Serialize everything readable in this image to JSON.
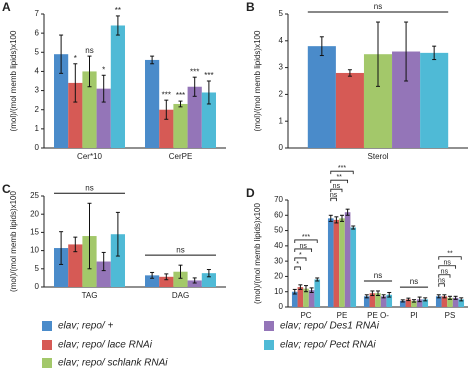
{
  "legend": [
    {
      "name": "elav; repo/ +",
      "color": "#4a8bca"
    },
    {
      "name": "elav; repo/ lace RNAi",
      "color": "#d65a55"
    },
    {
      "name": "elav; repo/ schlank RNAi",
      "color": "#a3c86a"
    },
    {
      "name": "elav; repo/ Des1 RNAi",
      "color": "#9475b8"
    },
    {
      "name": "elav; repo/ Pect RNAi",
      "color": "#4fbad6"
    }
  ],
  "chart_data": [
    {
      "type": "bar",
      "panel": "A",
      "y_label": "(mol)/(mol memb lipids)x100",
      "categories": [
        "Cer*10",
        "CerPE"
      ],
      "series": [
        {
          "values": [
            4.9,
            4.6
          ],
          "errors": [
            1.0,
            0.2
          ]
        },
        {
          "values": [
            3.4,
            2.0
          ],
          "errors": [
            1.0,
            0.5
          ]
        },
        {
          "values": [
            4.0,
            2.3
          ],
          "errors": [
            0.8,
            0.15
          ]
        },
        {
          "values": [
            3.1,
            3.2
          ],
          "errors": [
            0.7,
            0.5
          ]
        },
        {
          "values": [
            6.4,
            2.9
          ],
          "errors": [
            0.5,
            0.6
          ]
        }
      ],
      "ylim": [
        0,
        7
      ],
      "yticks": [
        0,
        1,
        2,
        3,
        4,
        5,
        6,
        7
      ],
      "annotations": [
        {
          "text": "*",
          "category": 0,
          "series": 1
        },
        {
          "text": "ns",
          "category": 0,
          "series": 2
        },
        {
          "text": "*",
          "category": 0,
          "series": 3
        },
        {
          "text": "**",
          "category": 0,
          "series": 4
        },
        {
          "text": "***",
          "category": 1,
          "series": 1
        },
        {
          "text": "***",
          "category": 1,
          "series": 2
        },
        {
          "text": "***",
          "category": 1,
          "series": 3
        },
        {
          "text": "***",
          "category": 1,
          "series": 4
        }
      ]
    },
    {
      "type": "bar",
      "panel": "B",
      "y_label": "(mol)/(mol memb lipids)x100",
      "categories": [
        "Sterol"
      ],
      "series": [
        {
          "values": [
            3.8
          ],
          "errors": [
            0.35
          ]
        },
        {
          "values": [
            2.8
          ],
          "errors": [
            0.12
          ]
        },
        {
          "values": [
            3.5
          ],
          "errors": [
            1.2
          ]
        },
        {
          "values": [
            3.6
          ],
          "errors": [
            1.1
          ]
        },
        {
          "values": [
            3.55
          ],
          "errors": [
            0.25
          ]
        }
      ],
      "ylim": [
        0,
        5
      ],
      "yticks": [
        0,
        1,
        2,
        3,
        4,
        5
      ],
      "annotations": [
        {
          "text": "ns",
          "category": 0
        }
      ]
    },
    {
      "type": "bar",
      "panel": "C",
      "y_label": "(mol)/(mol memb lipids)x100",
      "categories": [
        "TAG",
        "DAG"
      ],
      "series": [
        {
          "values": [
            10.7,
            3.2
          ],
          "errors": [
            4.5,
            0.8
          ]
        },
        {
          "values": [
            11.7,
            2.8
          ],
          "errors": [
            2.0,
            0.8
          ]
        },
        {
          "values": [
            14,
            4.2
          ],
          "errors": [
            9,
            1.8
          ]
        },
        {
          "values": [
            7,
            1.8
          ],
          "errors": [
            2.5,
            0.7
          ]
        },
        {
          "values": [
            14.5,
            3.8
          ],
          "errors": [
            6,
            1.0
          ]
        }
      ],
      "ylim": [
        0,
        25
      ],
      "yticks": [
        0,
        5,
        10,
        15,
        20,
        25
      ],
      "annotations": [
        {
          "text": "ns",
          "category": 0
        },
        {
          "text": "ns",
          "category": 1
        }
      ]
    },
    {
      "type": "bar",
      "panel": "D",
      "y_label": "(mol)/(mol memb lipids)x100",
      "brackets": true,
      "categories": [
        "PC",
        "PE",
        "PE O-",
        "PI",
        "PS"
      ],
      "series": [
        {
          "values": [
            10,
            58,
            7,
            4,
            7
          ],
          "errors": [
            1.5,
            2,
            1,
            0.7,
            1
          ]
        },
        {
          "values": [
            13,
            57,
            9,
            5,
            7
          ],
          "errors": [
            1.5,
            2,
            1.5,
            0.8,
            1
          ]
        },
        {
          "values": [
            12,
            58,
            9,
            4,
            6
          ],
          "errors": [
            2,
            2,
            1.5,
            0.8,
            1
          ]
        },
        {
          "values": [
            11,
            62,
            7,
            5,
            6
          ],
          "errors": [
            1.5,
            2,
            1,
            1.5,
            1
          ]
        },
        {
          "values": [
            18,
            52,
            8,
            5,
            5
          ],
          "errors": [
            1,
            1,
            1.5,
            1,
            1
          ]
        }
      ],
      "ylim": [
        0,
        70
      ],
      "yticks": [
        0,
        10,
        20,
        30,
        40,
        50,
        60,
        70
      ],
      "annotations": [
        {
          "text": "*",
          "category": 0,
          "series": 1
        },
        {
          "text": "*",
          "category": 0,
          "series": 2
        },
        {
          "text": "ns",
          "category": 0,
          "series": 3
        },
        {
          "text": "***",
          "category": 0,
          "series": 4
        },
        {
          "text": "ns",
          "category": 1,
          "series": 1
        },
        {
          "text": "ns",
          "category": 1,
          "series": 2
        },
        {
          "text": "**",
          "category": 1,
          "series": 3
        },
        {
          "text": "***",
          "category": 1,
          "series": 4
        },
        {
          "text": "ns",
          "category": 2
        },
        {
          "text": "ns",
          "category": 3
        },
        {
          "text": "ns",
          "category": 4,
          "series": 1
        },
        {
          "text": "ns",
          "category": 4,
          "series": 2
        },
        {
          "text": "ns",
          "category": 4,
          "series": 3
        },
        {
          "text": "**",
          "category": 4,
          "series": 4
        }
      ]
    }
  ]
}
